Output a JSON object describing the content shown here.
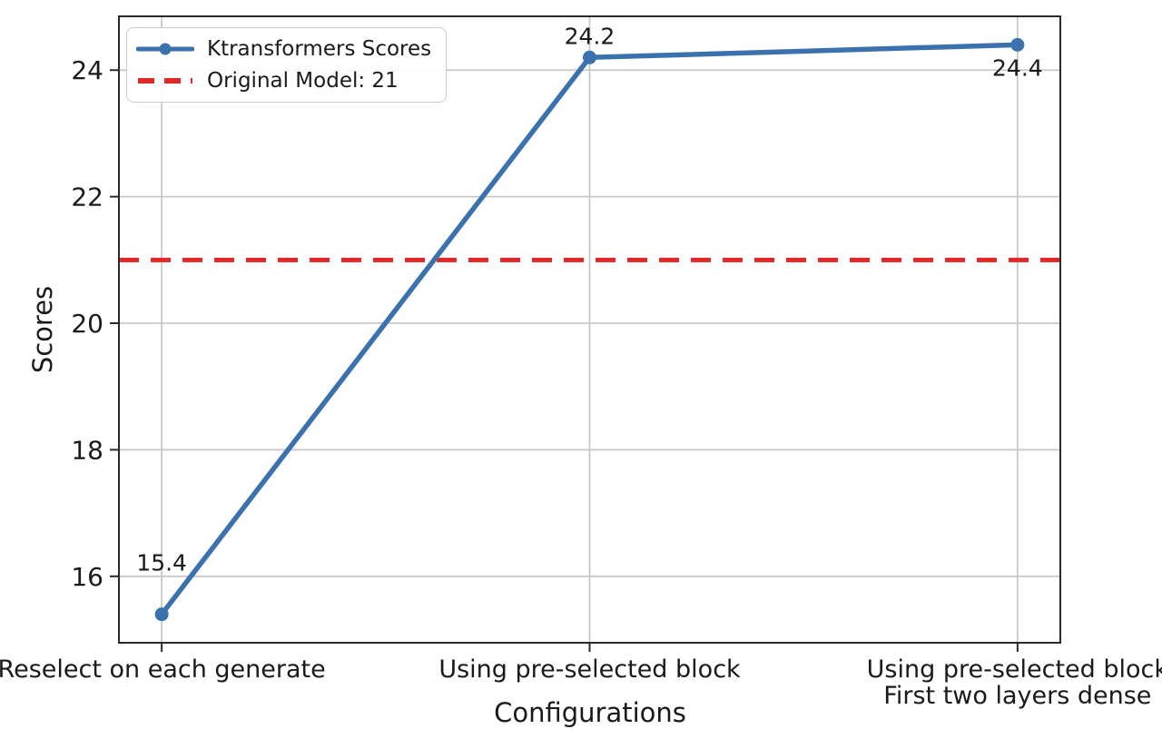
{
  "chart_data": {
    "type": "line",
    "categories": [
      "Reselect on each generate",
      "Using pre-selected block",
      "Using pre-selected block\nFirst two layers dense"
    ],
    "series": [
      {
        "name": "Ktransformers Scores",
        "values": [
          15.4,
          24.2,
          24.4
        ],
        "color": "#3b72ae"
      }
    ],
    "reference_line": {
      "label": "Original Model: 21",
      "value": 21,
      "color": "#e02828",
      "style": "dashed"
    },
    "point_labels": [
      "15.4",
      "24.2",
      "24.4"
    ],
    "point_label_baseline_dy": [
      -48,
      -15,
      34
    ],
    "title": "",
    "xlabel": "Configurations",
    "ylabel": "Scores",
    "yticks": [
      16,
      18,
      20,
      22,
      24
    ],
    "ylim": [
      14.95,
      24.85
    ],
    "grid": true,
    "legend_position": "upper left",
    "colors": {
      "grid": "#c8c8c8",
      "spine": "#2a2a2a",
      "text": "#1a1a1a",
      "background": "#ffffff"
    }
  }
}
